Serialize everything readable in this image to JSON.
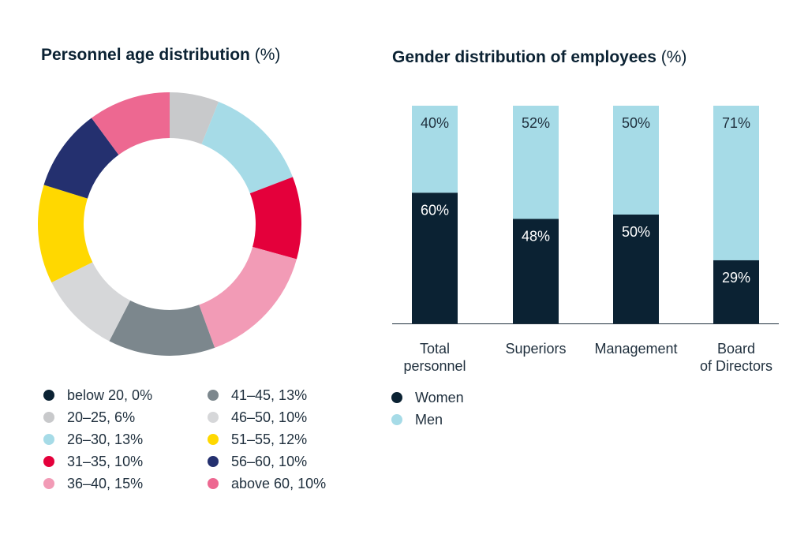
{
  "age_chart": {
    "title_bold": "Personnel age distribution",
    "title_unit": "(%)"
  },
  "gender_chart": {
    "title_bold": "Gender distribution of employees",
    "title_unit": "(%)"
  },
  "chart_data": [
    {
      "type": "pie",
      "title": "Personnel age distribution (%)",
      "labels": [
        "below 20",
        "20–25",
        "26–30",
        "31–35",
        "36–40",
        "41–45",
        "46–50",
        "51–55",
        "56–60",
        "above 60"
      ],
      "values": [
        0,
        6,
        13,
        10,
        15,
        13,
        10,
        12,
        10,
        10
      ],
      "legend_labels": [
        "below 20, 0%",
        "20–25, 6%",
        "26–30, 13%",
        "31–35, 10%",
        "36–40, 15%",
        "41–45, 13%",
        "46–50, 10%",
        "51–55, 12%",
        "56–60, 10%",
        "above 60, 10%"
      ],
      "colors": [
        "#0b2233",
        "#c8c9cb",
        "#a6dbe7",
        "#e4003b",
        "#f29bb6",
        "#7c878d",
        "#d6d7d9",
        "#ffd800",
        "#24306f",
        "#ed6891"
      ],
      "legend_position": "bottom"
    },
    {
      "type": "bar",
      "stacked": true,
      "title": "Gender distribution of employees (%)",
      "categories": [
        "Total\npersonnel",
        "Superiors",
        "Management",
        "Board\nof Directors"
      ],
      "series": [
        {
          "name": "Women",
          "values": [
            60,
            48,
            50,
            29
          ],
          "labels": [
            "60%",
            "48%",
            "50%",
            "29%"
          ],
          "color": "#0b2233"
        },
        {
          "name": "Men",
          "values": [
            40,
            52,
            50,
            71
          ],
          "labels": [
            "40%",
            "52%",
            "50%",
            "71%"
          ],
          "color": "#a6dbe7"
        }
      ],
      "ylim": [
        0,
        100
      ],
      "grid": false,
      "legend_position": "bottom-left"
    }
  ]
}
